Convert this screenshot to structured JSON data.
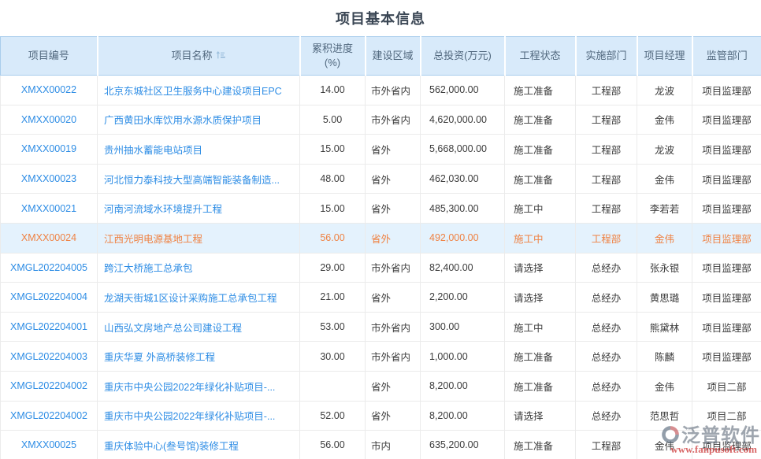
{
  "page_title": "项目基本信息",
  "watermark": {
    "brand": "泛普软件",
    "url": "www.fanpusoft.com"
  },
  "icons": {
    "name_column_sort": "sort-icon",
    "watermark_logo": "fanpu-logo-icon"
  },
  "colors": {
    "link_blue": "#2e8de5",
    "highlight_orange": "#ef8243",
    "header_bg": "#d8eafa",
    "highlight_row_bg": "#e4f2fd",
    "title_text": "#3a4654"
  },
  "table": {
    "columns": [
      {
        "key": "id",
        "label": "项目编号",
        "sortable": false
      },
      {
        "key": "name",
        "label": "项目名称",
        "sortable": true
      },
      {
        "key": "progress",
        "label": "累积进度 (%)",
        "sortable": false
      },
      {
        "key": "region",
        "label": "建设区域",
        "sortable": false
      },
      {
        "key": "investment",
        "label": "总投资(万元)",
        "sortable": false
      },
      {
        "key": "status",
        "label": "工程状态",
        "sortable": false
      },
      {
        "key": "dept",
        "label": "实施部门",
        "sortable": false
      },
      {
        "key": "manager",
        "label": "项目经理",
        "sortable": false
      },
      {
        "key": "supervisor",
        "label": "监管部门",
        "sortable": false
      }
    ],
    "rows": [
      {
        "id": "XMXX00022",
        "name": "北京东城社区卫生服务中心建设项目EPC",
        "progress": "14.00",
        "region": "市外省内",
        "investment": "562,000.00",
        "status": "施工准备",
        "dept": "工程部",
        "manager": "龙波",
        "supervisor": "项目监理部",
        "highlighted": false
      },
      {
        "id": "XMXX00020",
        "name": "广西黄田水库饮用水源水质保护项目",
        "progress": "5.00",
        "region": "市外省内",
        "investment": "4,620,000.00",
        "status": "施工准备",
        "dept": "工程部",
        "manager": "金伟",
        "supervisor": "项目监理部",
        "highlighted": false
      },
      {
        "id": "XMXX00019",
        "name": "贵州抽水蓄能电站项目",
        "progress": "15.00",
        "region": "省外",
        "investment": "5,668,000.00",
        "status": "施工准备",
        "dept": "工程部",
        "manager": "龙波",
        "supervisor": "项目监理部",
        "highlighted": false
      },
      {
        "id": "XMXX00023",
        "name": "河北恒力泰科技大型高端智能装备制造...",
        "progress": "48.00",
        "region": "省外",
        "investment": "462,030.00",
        "status": "施工准备",
        "dept": "工程部",
        "manager": "金伟",
        "supervisor": "项目监理部",
        "highlighted": false
      },
      {
        "id": "XMXX00021",
        "name": "河南河流域水环境提升工程",
        "progress": "15.00",
        "region": "省外",
        "investment": "485,300.00",
        "status": "施工中",
        "dept": "工程部",
        "manager": "李若若",
        "supervisor": "项目监理部",
        "highlighted": false
      },
      {
        "id": "XMXX00024",
        "name": "江西光明电源基地工程",
        "progress": "56.00",
        "region": "省外",
        "investment": "492,000.00",
        "status": "施工中",
        "dept": "工程部",
        "manager": "金伟",
        "supervisor": "项目监理部",
        "highlighted": true
      },
      {
        "id": "XMGL202204005",
        "name": "跨江大桥施工总承包",
        "progress": "29.00",
        "region": "市外省内",
        "investment": "82,400.00",
        "status": "请选择",
        "dept": "总经办",
        "manager": "张永银",
        "supervisor": "项目监理部",
        "highlighted": false
      },
      {
        "id": "XMGL202204004",
        "name": "龙湖天街城1区设计采购施工总承包工程",
        "progress": "21.00",
        "region": "省外",
        "investment": "2,200.00",
        "status": "请选择",
        "dept": "总经办",
        "manager": "黄思璐",
        "supervisor": "项目监理部",
        "highlighted": false
      },
      {
        "id": "XMGL202204001",
        "name": "山西弘文房地产总公司建设工程",
        "progress": "53.00",
        "region": "市外省内",
        "investment": "300.00",
        "status": "施工中",
        "dept": "总经办",
        "manager": "熊黛林",
        "supervisor": "项目监理部",
        "highlighted": false
      },
      {
        "id": "XMGL202204003",
        "name": "重庆华夏 外高桥装修工程",
        "progress": "30.00",
        "region": "市外省内",
        "investment": "1,000.00",
        "status": "施工准备",
        "dept": "总经办",
        "manager": "陈麟",
        "supervisor": "项目监理部",
        "highlighted": false
      },
      {
        "id": "XMGL202204002",
        "name": "重庆市中央公园2022年绿化补贴项目-...",
        "progress": "",
        "region": "省外",
        "investment": "8,200.00",
        "status": "施工准备",
        "dept": "总经办",
        "manager": "金伟",
        "supervisor": "项目二部",
        "highlighted": false
      },
      {
        "id": "XMGL202204002",
        "name": "重庆市中央公园2022年绿化补贴项目-...",
        "progress": "52.00",
        "region": "省外",
        "investment": "8,200.00",
        "status": "请选择",
        "dept": "总经办",
        "manager": "范思哲",
        "supervisor": "项目二部",
        "highlighted": false
      },
      {
        "id": "XMXX00025",
        "name": "重庆体验中心(叁号馆)装修工程",
        "progress": "56.00",
        "region": "市内",
        "investment": "635,200.00",
        "status": "施工准备",
        "dept": "工程部",
        "manager": "金伟",
        "supervisor": "项目监理部",
        "highlighted": false
      }
    ]
  }
}
